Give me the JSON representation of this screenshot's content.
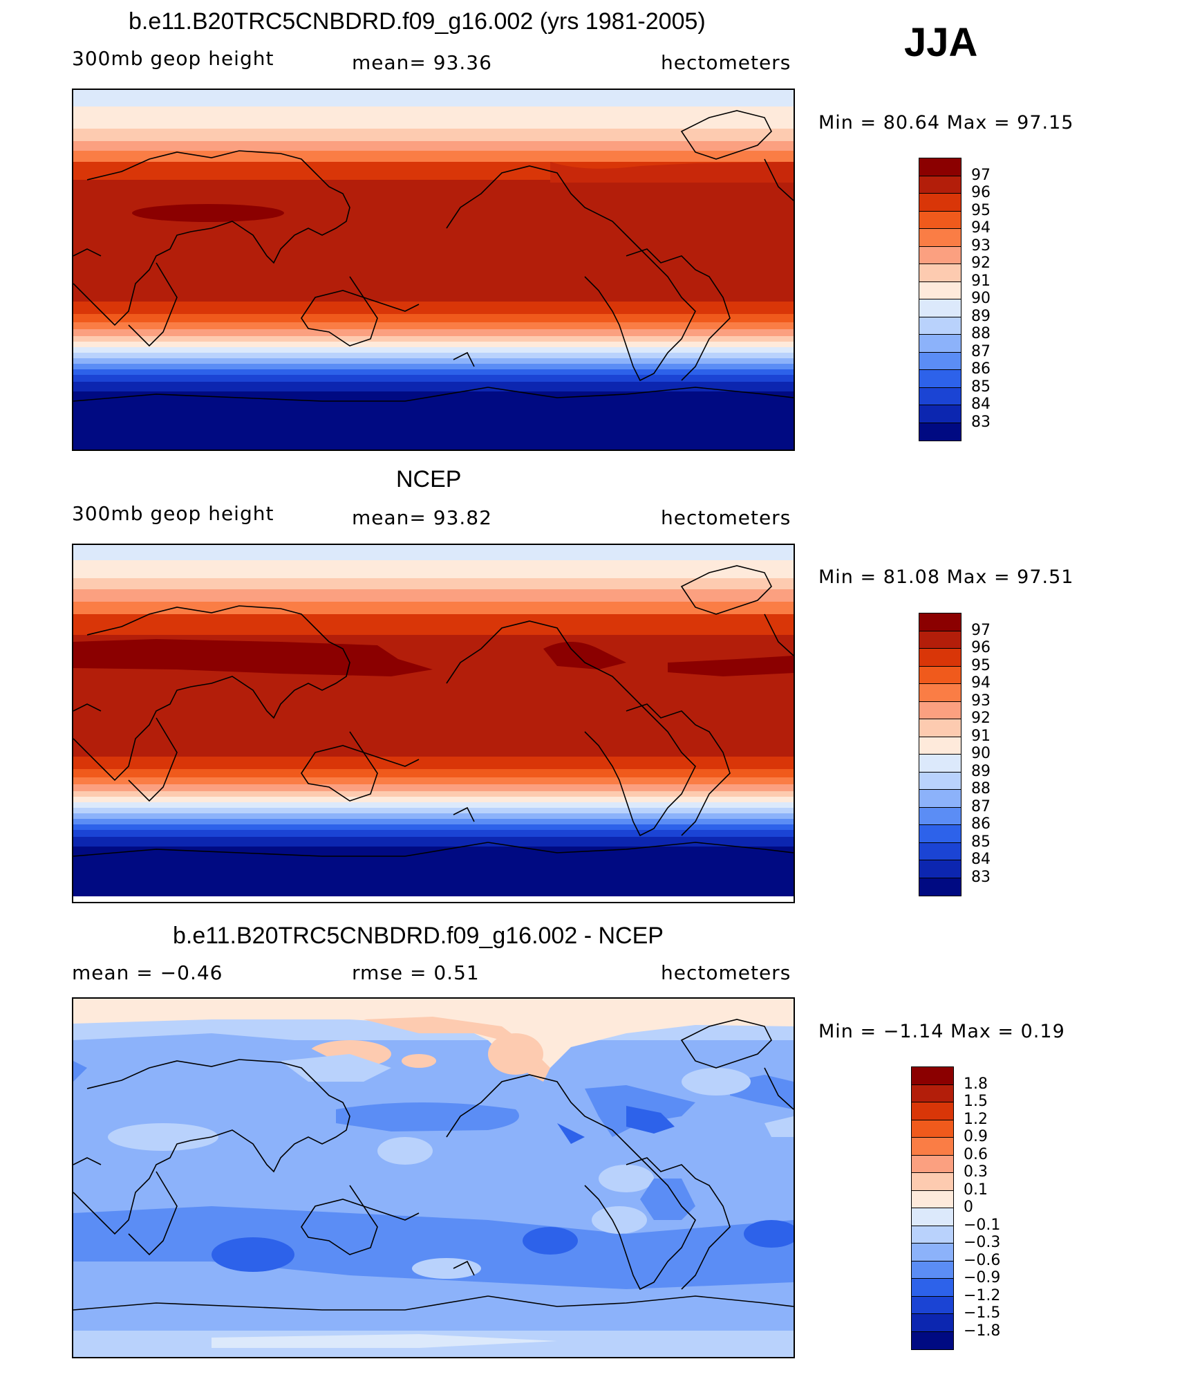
{
  "season": "JJA",
  "panels": [
    {
      "title": "b.e11.B20TRC5CNBDRD.f09_g16.002 (yrs 1981-2005)",
      "left_label": "300mb geop height",
      "center_label": "mean=  93.36",
      "right_label": "hectometers",
      "minmax": "Min =  80.64 Max =  97.15",
      "colorbar": {
        "labels": [
          "97",
          "96",
          "95",
          "94",
          "93",
          "92",
          "91",
          "90",
          "89",
          "88",
          "87",
          "86",
          "85",
          "84",
          "83"
        ],
        "colors": [
          "#8b0000",
          "#b31e0a",
          "#d93608",
          "#f05a1c",
          "#fa7d45",
          "#fba080",
          "#fdcbb0",
          "#feeadb",
          "#dce9fb",
          "#b9d2fc",
          "#8cb2fa",
          "#5b8df5",
          "#2d62ea",
          "#1b44d4",
          "#0c26b0",
          "#000a82"
        ]
      }
    },
    {
      "title": "NCEP",
      "left_label": "300mb geop height",
      "center_label": "mean=  93.82",
      "right_label": "hectometers",
      "minmax": "Min =  81.08 Max =  97.51",
      "colorbar": {
        "labels": [
          "97",
          "96",
          "95",
          "94",
          "93",
          "92",
          "91",
          "90",
          "89",
          "88",
          "87",
          "86",
          "85",
          "84",
          "83"
        ],
        "colors": [
          "#8b0000",
          "#b31e0a",
          "#d93608",
          "#f05a1c",
          "#fa7d45",
          "#fba080",
          "#fdcbb0",
          "#feeadb",
          "#dce9fb",
          "#b9d2fc",
          "#8cb2fa",
          "#5b8df5",
          "#2d62ea",
          "#1b44d4",
          "#0c26b0",
          "#000a82"
        ]
      }
    },
    {
      "title": "b.e11.B20TRC5CNBDRD.f09_g16.002 - NCEP",
      "left_label": "mean =  −0.46",
      "center_label": "rmse =   0.51",
      "right_label": "hectometers",
      "minmax": "Min =  −1.14 Max =   0.19",
      "colorbar": {
        "labels": [
          "1.8",
          "1.5",
          "1.2",
          "0.9",
          "0.6",
          "0.3",
          "0.1",
          "0",
          "−0.1",
          "−0.3",
          "−0.6",
          "−0.9",
          "−1.2",
          "−1.5",
          "−1.8"
        ],
        "colors": [
          "#8b0000",
          "#b31e0a",
          "#d93608",
          "#f05a1c",
          "#fa7d45",
          "#fba080",
          "#fdcbb0",
          "#feeadb",
          "#dce9fb",
          "#b9d2fc",
          "#8cb2fa",
          "#5b8df5",
          "#2d62ea",
          "#1b44d4",
          "#0c26b0",
          "#000a82"
        ]
      }
    }
  ]
}
